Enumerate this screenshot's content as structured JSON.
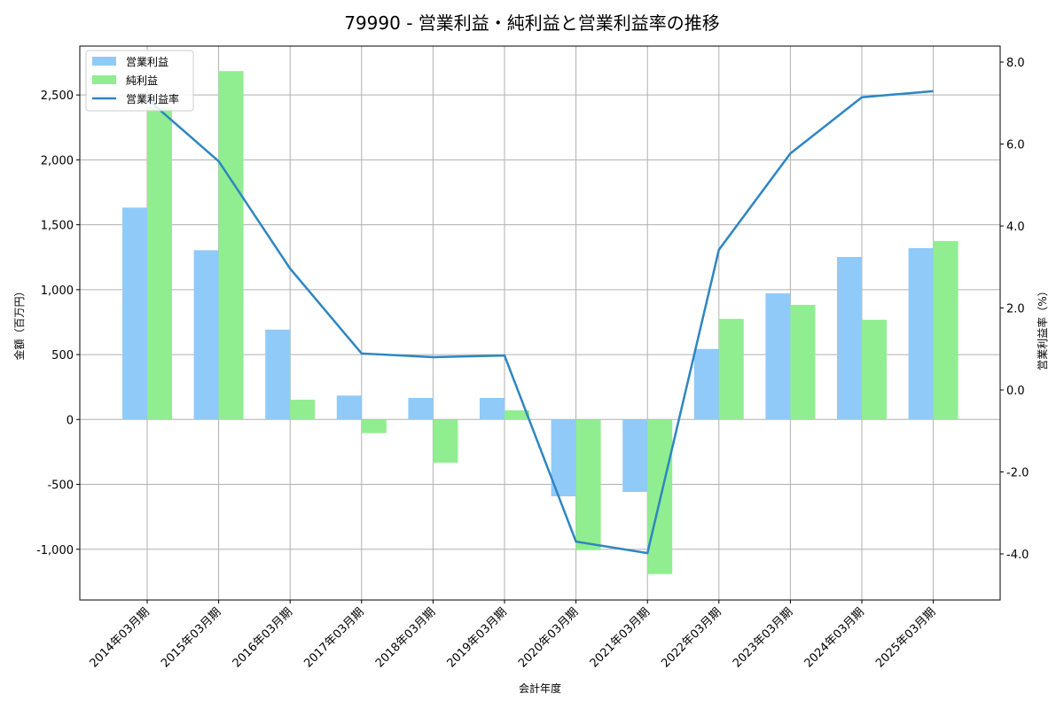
{
  "chart_data": {
    "type": "bar",
    "title": "79990 - 営業利益・純利益と営業利益率の推移",
    "xlabel": "会計年度",
    "ylabel": "金額（百万円）",
    "ylabel_right": "営業利益率（%）",
    "categories": [
      "2014年03月期",
      "2015年03月期",
      "2016年03月期",
      "2017年03月期",
      "2018年03月期",
      "2019年03月期",
      "2020年03月期",
      "2021年03月期",
      "2022年03月期",
      "2023年03月期",
      "2024年03月期",
      "2025年03月期"
    ],
    "series": [
      {
        "name": "営業利益",
        "type": "bar",
        "axis": "left",
        "color": "#90caf9",
        "values": [
          1632,
          1304,
          692,
          184,
          166,
          166,
          -592,
          -558,
          543,
          972,
          1252,
          1320
        ]
      },
      {
        "name": "純利益",
        "type": "bar",
        "axis": "left",
        "color": "#90ee90",
        "values": [
          2404,
          2684,
          152,
          -105,
          -333,
          70,
          -1007,
          -1191,
          775,
          883,
          768,
          1375
        ]
      },
      {
        "name": "営業利益率",
        "type": "line",
        "axis": "right",
        "color": "#2e86c1",
        "values": [
          7.1,
          5.58,
          2.96,
          0.89,
          0.8,
          0.84,
          -3.7,
          -3.98,
          3.42,
          5.77,
          7.14,
          7.29
        ]
      }
    ],
    "ylim": [
      -1400,
      2850
    ],
    "ylim_right": [
      -5.1,
      8.3
    ],
    "yticks": [
      "-1,000",
      "-500",
      "0",
      "500",
      "1,000",
      "1,500",
      "2,000",
      "2,500"
    ],
    "yticks_right": [
      "-4.0",
      "-2.0",
      "0.0",
      "2.0",
      "4.0",
      "6.0",
      "8.0"
    ],
    "grid": true,
    "legend_position": "upper left"
  }
}
